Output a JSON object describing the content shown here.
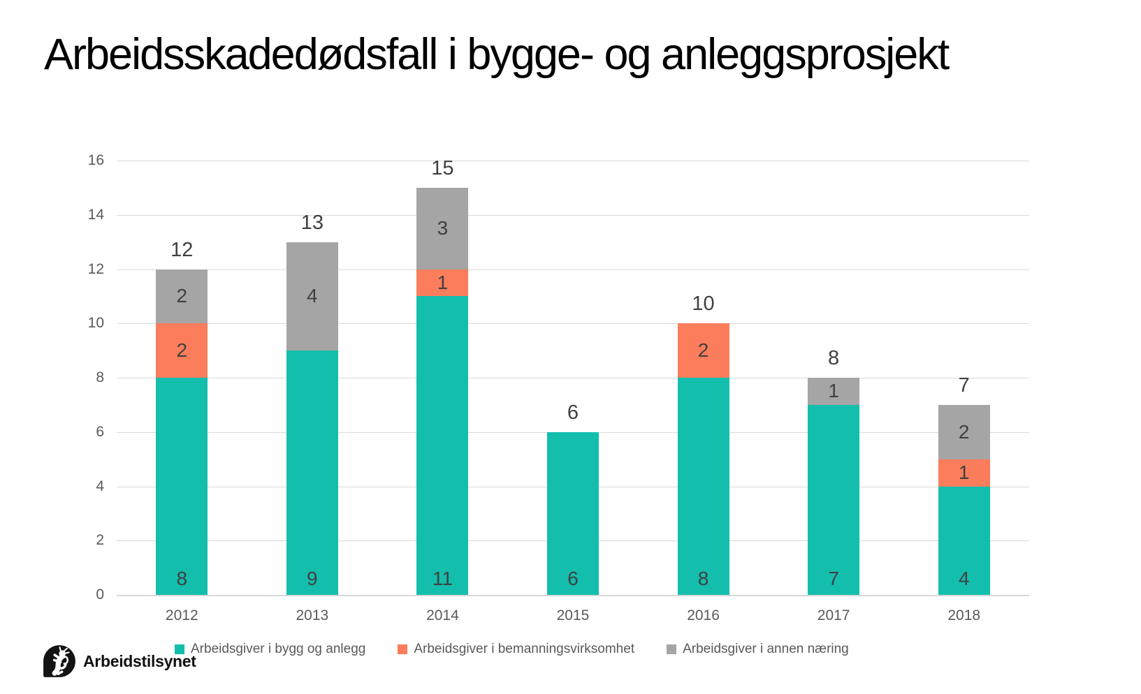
{
  "title": "Arbeidsskadedødsfall i bygge- og anleggsprosjekt",
  "logo": {
    "icon": "arbeidstilsynet-lion-icon",
    "text": "Arbeidstilsynet"
  },
  "colors": {
    "teal": "#13BEAD",
    "orange": "#FB7D5B",
    "gray": "#A5A5A5",
    "data_label": "#404040",
    "axis_text": "#595959",
    "gridline": "#D9D9D9",
    "title_text": "#000000"
  },
  "chart_data": {
    "type": "bar",
    "stacked": true,
    "title": "Arbeidsskadedødsfall i bygge- og anleggsprosjekt",
    "xlabel": "",
    "ylabel": "",
    "categories": [
      "2012",
      "2013",
      "2014",
      "2015",
      "2016",
      "2017",
      "2018"
    ],
    "series": [
      {
        "name": "Arbeidsgiver i bygg og anlegg",
        "color": "#13BEAD",
        "values": [
          8,
          9,
          11,
          6,
          8,
          7,
          4
        ]
      },
      {
        "name": "Arbeidsgiver i bemanningsvirksomhet",
        "color": "#FB7D5B",
        "values": [
          2,
          0,
          1,
          0,
          2,
          0,
          1
        ]
      },
      {
        "name": "Arbeidsgiver i annen næring",
        "color": "#A5A5A5",
        "values": [
          2,
          4,
          3,
          0,
          0,
          1,
          2
        ]
      }
    ],
    "totals": [
      12,
      13,
      15,
      6,
      10,
      8,
      7
    ],
    "ylim": [
      0,
      16
    ],
    "yticks": [
      0,
      2,
      4,
      6,
      8,
      10,
      12,
      14,
      16
    ],
    "grid": true,
    "legend_position": "bottom"
  }
}
